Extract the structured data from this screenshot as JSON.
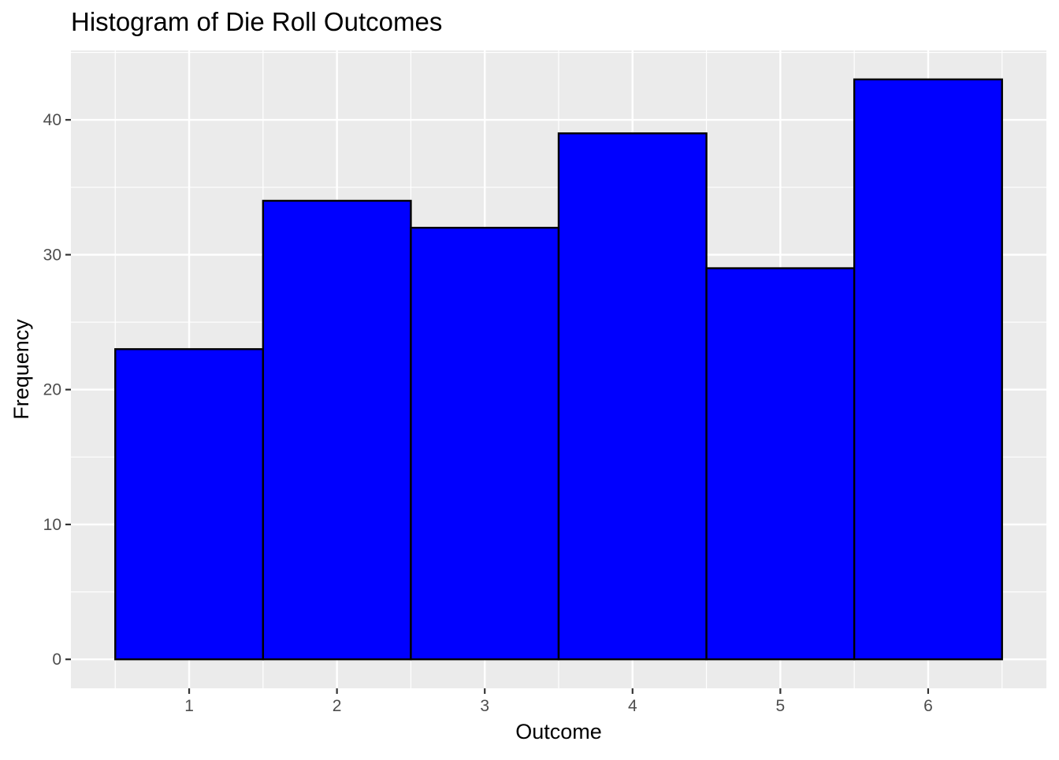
{
  "chart_data": {
    "type": "bar",
    "title": "Histogram of Die Roll Outcomes",
    "xlabel": "Outcome",
    "ylabel": "Frequency",
    "categories": [
      "1",
      "2",
      "3",
      "4",
      "5",
      "6"
    ],
    "values": [
      23,
      34,
      32,
      39,
      29,
      43
    ],
    "bin_edges": [
      0.5,
      1.5,
      2.5,
      3.5,
      4.5,
      5.5,
      6.5
    ],
    "xlim": [
      0.2,
      6.8
    ],
    "ylim": [
      -2.15,
      45.15
    ],
    "yticks": [
      0,
      10,
      20,
      30,
      40
    ],
    "xticks": [
      1,
      2,
      3,
      4,
      5,
      6
    ],
    "grid": true,
    "legend": "none",
    "colors": {
      "bar_fill": "#0000ff",
      "bar_outline": "#000000",
      "panel_background": "#ebebeb",
      "grid_line": "#ffffff"
    }
  }
}
